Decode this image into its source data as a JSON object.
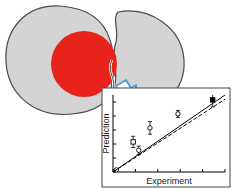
{
  "chart_data": {
    "type": "scatter",
    "x_label": "Experiment",
    "y_label": "Prediction",
    "xlim": [
      0,
      10
    ],
    "ylim": [
      0,
      11
    ],
    "xticks": [
      0,
      2,
      4,
      6,
      8,
      10
    ],
    "yticks": [
      0,
      2,
      4,
      6,
      8,
      10
    ],
    "tick_labels": false,
    "grid": false,
    "series": [
      {
        "type": "scatter",
        "marker": "open-circle",
        "color": "#000000",
        "x": [
          0.3,
          2.3,
          3.3,
          5.8
        ],
        "values": [
          0.3,
          3.1,
          6.3,
          8.3
        ],
        "errors": [
          0,
          0.6,
          0.9,
          0.5
        ]
      },
      {
        "type": "scatter",
        "marker": "open-square",
        "color": "#000000",
        "x": [
          1.8
        ],
        "values": [
          4.3
        ],
        "errors": [
          0.8
        ]
      },
      {
        "type": "scatter",
        "marker": "filled-square",
        "color": "#000000",
        "x": [
          8.9
        ],
        "values": [
          10.3
        ],
        "errors": [
          1.0
        ]
      },
      {
        "type": "line",
        "line_style": "solid",
        "color": "#000000",
        "x": [
          0,
          10
        ],
        "values": [
          0,
          11
        ]
      },
      {
        "type": "line",
        "line_style": "dashed",
        "color": "#000000",
        "x": [
          0,
          10
        ],
        "values": [
          0,
          10.4
        ]
      }
    ]
  }
}
